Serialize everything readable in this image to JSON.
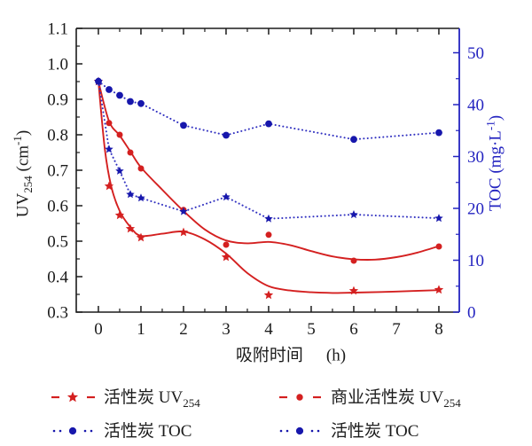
{
  "colors": {
    "red": "#d42020",
    "blue_marker": "#1717ac",
    "blue_line": "#3030c0",
    "axis_black": "#1b1b1b",
    "axis_blue": "#2323c0",
    "background": "#ffffff"
  },
  "labels": {
    "x_label": {
      "text": "吸附时间",
      "unit": "(h)"
    },
    "y_left_label": {
      "pre": "UV",
      "sub": "254",
      "mid": " (cm",
      "sup": "-1",
      "end": ")"
    },
    "y_right_label": {
      "pre": "TOC (mg·L",
      "mid": "",
      "sup": "-1",
      "end": ")"
    }
  },
  "legend": [
    {
      "marker": "dash-star",
      "color": "#d42020",
      "text": "活性炭 UV",
      "sub": "254"
    },
    {
      "marker": "dash-circle",
      "color": "#d42020",
      "text": "商业活性炭 UV",
      "sub": "254"
    },
    {
      "marker": "dot-circle",
      "color": "#1717ac",
      "text": "活性炭 TOC",
      "sub": ""
    },
    {
      "marker": "dot-circle",
      "color": "#1717ac",
      "text": "活性炭 TOC",
      "sub": ""
    }
  ],
  "chart_data": {
    "type": "line",
    "xlabel": "吸附时间 (h)",
    "ylabel_left": "UV254 (cm-1)",
    "ylabel_right": "TOC (mg·L-1)",
    "grid": false,
    "legend_position": "bottom",
    "x_axis": {
      "min": -0.52,
      "max": 8.48,
      "ticks": [
        0,
        1,
        2,
        3,
        4,
        5,
        6,
        7,
        8
      ],
      "labels": [
        "0",
        "1",
        "2",
        "3",
        "4",
        "5",
        "6",
        "7",
        "8"
      ],
      "minor": [
        0.5,
        1.5,
        2.5,
        3.5,
        4.5,
        5.5,
        6.5,
        7.5
      ]
    },
    "y_left": {
      "min": 0.3,
      "max": 1.1,
      "ticks": [
        0.3,
        0.4,
        0.5,
        0.6,
        0.7,
        0.8,
        0.9,
        1.0,
        1.1
      ],
      "labels": [
        "0.3",
        "0.4",
        "0.5",
        "0.6",
        "0.7",
        "0.8",
        "0.9",
        "1.0",
        "1.1"
      ],
      "minor": [
        0.35,
        0.45,
        0.55,
        0.65,
        0.75,
        0.85,
        0.95,
        1.05
      ]
    },
    "y_right": {
      "min": 0,
      "max": 54.7,
      "ticks": [
        0,
        10,
        20,
        30,
        40,
        50
      ],
      "labels": [
        "0",
        "10",
        "20",
        "30",
        "40",
        "50"
      ],
      "minor": [
        5,
        15,
        25,
        35,
        45
      ]
    },
    "x": [
      0,
      0.25,
      0.5,
      0.75,
      1,
      2,
      3,
      4,
      6,
      8
    ],
    "series": [
      {
        "name": "活性炭 UV254",
        "axis": "left",
        "marker": "star",
        "marker_size": 5.4,
        "line": "fit",
        "color": "#d42020",
        "line_color": "#d42020",
        "values": [
          0.95,
          0.655,
          0.573,
          0.535,
          0.51,
          0.525,
          0.455,
          0.348,
          0.36,
          0.363
        ],
        "fit": [
          [
            0,
            0.95
          ],
          [
            0.15,
            0.76
          ],
          [
            0.3,
            0.655
          ],
          [
            0.5,
            0.585
          ],
          [
            0.75,
            0.54
          ],
          [
            1,
            0.515
          ],
          [
            1.5,
            0.521
          ],
          [
            2,
            0.527
          ],
          [
            2.5,
            0.505
          ],
          [
            3,
            0.465
          ],
          [
            3.5,
            0.41
          ],
          [
            4,
            0.373
          ],
          [
            4.5,
            0.361
          ],
          [
            5,
            0.356
          ],
          [
            5.5,
            0.354
          ],
          [
            6,
            0.355
          ],
          [
            7,
            0.358
          ],
          [
            8,
            0.362
          ]
        ]
      },
      {
        "name": "商业活性炭 UV254",
        "axis": "left",
        "marker": "circle",
        "marker_size": 3.5,
        "line": "fit",
        "color": "#d42020",
        "line_color": "#d42020",
        "values": [
          0.95,
          0.833,
          0.8,
          0.75,
          0.705,
          0.588,
          0.49,
          0.518,
          0.445,
          0.485
        ],
        "fit": [
          [
            0,
            0.95
          ],
          [
            0.25,
            0.838
          ],
          [
            0.5,
            0.798
          ],
          [
            0.75,
            0.753
          ],
          [
            1,
            0.708
          ],
          [
            1.5,
            0.645
          ],
          [
            2,
            0.585
          ],
          [
            2.5,
            0.533
          ],
          [
            3,
            0.502
          ],
          [
            3.5,
            0.494
          ],
          [
            4,
            0.498
          ],
          [
            4.5,
            0.489
          ],
          [
            5,
            0.472
          ],
          [
            5.5,
            0.457
          ],
          [
            6,
            0.449
          ],
          [
            6.5,
            0.448
          ],
          [
            7,
            0.455
          ],
          [
            7.5,
            0.468
          ],
          [
            8,
            0.486
          ]
        ]
      },
      {
        "name": "活性炭 TOC",
        "axis": "right",
        "marker": "star",
        "marker_size": 5,
        "line": "dotted",
        "color": "#1717ac",
        "line_color": "#3030c0",
        "values": [
          44.5,
          31.4,
          27.2,
          22.7,
          22.0,
          19.4,
          22.2,
          18.0,
          18.8,
          18.1
        ]
      },
      {
        "name": "活性炭 TOC",
        "axis": "right",
        "marker": "circle",
        "marker_size": 3.9,
        "line": "dotted",
        "color": "#1717ac",
        "line_color": "#3030c0",
        "values": [
          44.5,
          42.9,
          41.8,
          40.6,
          40.2,
          36.0,
          34.1,
          36.3,
          33.3,
          34.6
        ]
      }
    ]
  }
}
